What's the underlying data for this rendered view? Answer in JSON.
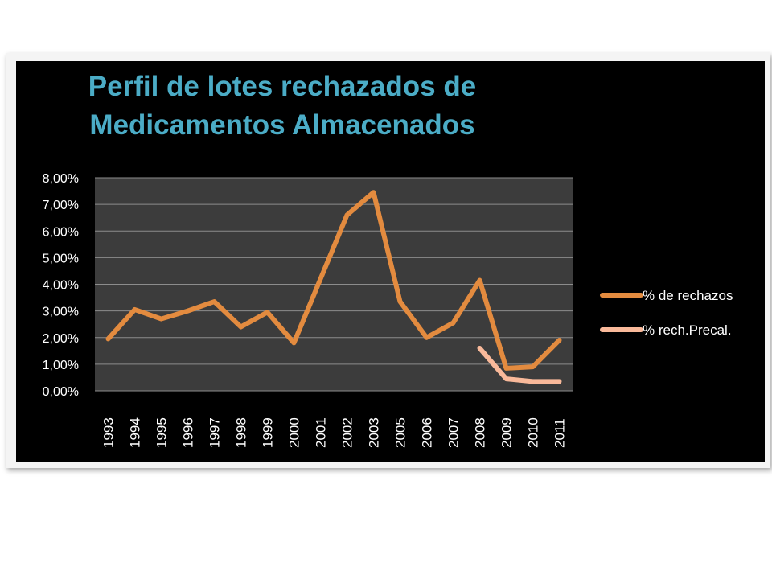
{
  "chart_data": {
    "type": "line",
    "title_lines": [
      "Perfil de lotes rechazados de",
      "Medicamentos Almacenados"
    ],
    "categories": [
      "1993",
      "1994",
      "1995",
      "1996",
      "1997",
      "1998",
      "1999",
      "2000",
      "2001",
      "2002",
      "2003",
      "2005",
      "2006",
      "2007",
      "2008",
      "2009",
      "2010",
      "2011"
    ],
    "series": [
      {
        "name": "% de rechazos",
        "color": "#e38b3f",
        "values": [
          1.95,
          3.05,
          2.7,
          3.0,
          3.35,
          2.4,
          2.95,
          1.8,
          4.2,
          6.6,
          7.45,
          3.35,
          2.0,
          2.55,
          4.15,
          0.85,
          0.9,
          1.9
        ]
      },
      {
        "name": "% rech.Precal.",
        "color": "#f9b99a",
        "values": [
          null,
          null,
          null,
          null,
          null,
          null,
          null,
          null,
          null,
          null,
          null,
          null,
          null,
          null,
          1.6,
          0.45,
          0.35,
          0.35
        ]
      }
    ],
    "y_ticks": [
      "0,00%",
      "1,00%",
      "2,00%",
      "3,00%",
      "4,00%",
      "5,00%",
      "6,00%",
      "7,00%",
      "8,00%"
    ],
    "ylim": [
      0,
      8
    ],
    "grid": true,
    "legend_position": "right",
    "plot_background": "#3c3c3c",
    "title_color": "#4bacc6"
  }
}
